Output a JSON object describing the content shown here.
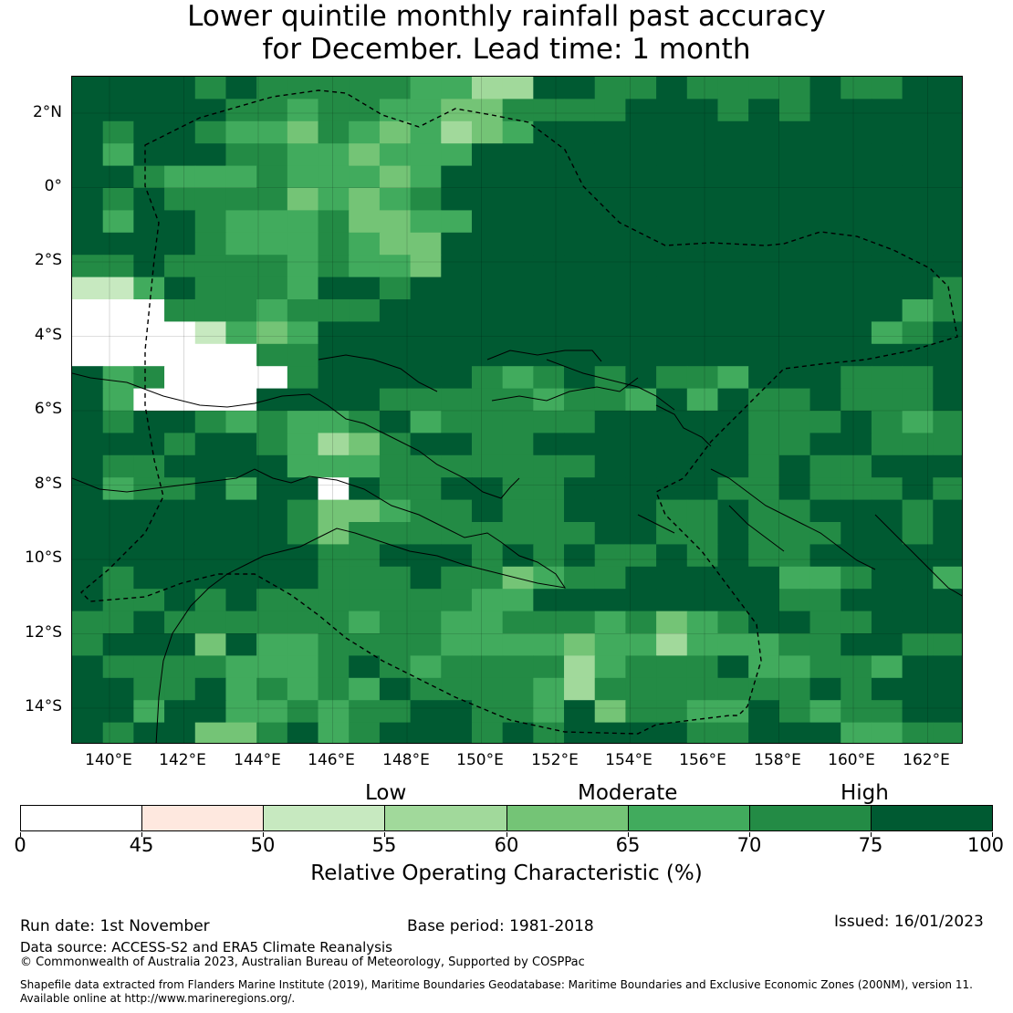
{
  "title_line1": "Lower quintile monthly rainfall past accuracy",
  "title_line2": "for December. Lead time: 1 month",
  "map": {
    "lat_labels": [
      "2°N",
      "0°",
      "2°S",
      "4°S",
      "6°S",
      "8°S",
      "10°S",
      "12°S",
      "14°S"
    ],
    "lon_labels": [
      "140°E",
      "142°E",
      "144°E",
      "146°E",
      "148°E",
      "150°E",
      "152°E",
      "154°E",
      "156°E",
      "158°E",
      "160°E",
      "162°E"
    ]
  },
  "legend": {
    "levels": [
      "Low",
      "Moderate",
      "High"
    ],
    "title": "Relative Operating Characteristic (%)",
    "bins": [
      {
        "from": 0,
        "to": 45,
        "color": "#ffffff"
      },
      {
        "from": 45,
        "to": 50,
        "color": "#fee8df"
      },
      {
        "from": 50,
        "to": 55,
        "color": "#c7e9c0"
      },
      {
        "from": 55,
        "to": 60,
        "color": "#a1d99b"
      },
      {
        "from": 60,
        "to": 65,
        "color": "#74c476"
      },
      {
        "from": 65,
        "to": 70,
        "color": "#41ab5d"
      },
      {
        "from": 70,
        "to": 75,
        "color": "#238b45"
      },
      {
        "from": 75,
        "to": 100,
        "color": "#005a32"
      }
    ],
    "tick_labels": [
      "0",
      "45",
      "50",
      "55",
      "60",
      "65",
      "70",
      "75",
      "100"
    ]
  },
  "footer": {
    "run_date": "Run date: 1st November",
    "base_period": "Base period: 1981-2018",
    "issued": "Issued: 16/01/2023",
    "data_source": "Data source: ACCESS-S2 and ERA5 Climate Reanalysis",
    "copyright": "© Commonwealth of Australia 2023, Australian Bureau of Meteorology, Supported by COSPPac",
    "shapefile_line1": "Shapefile data extracted from Flanders Marine Institute (2019), Maritime Boundaries Geodatabase: Maritime Boundaries and Exclusive Economic Zones (200NM), version 11.",
    "shapefile_line2": "Available online at http://www.marineregions.org/."
  }
}
